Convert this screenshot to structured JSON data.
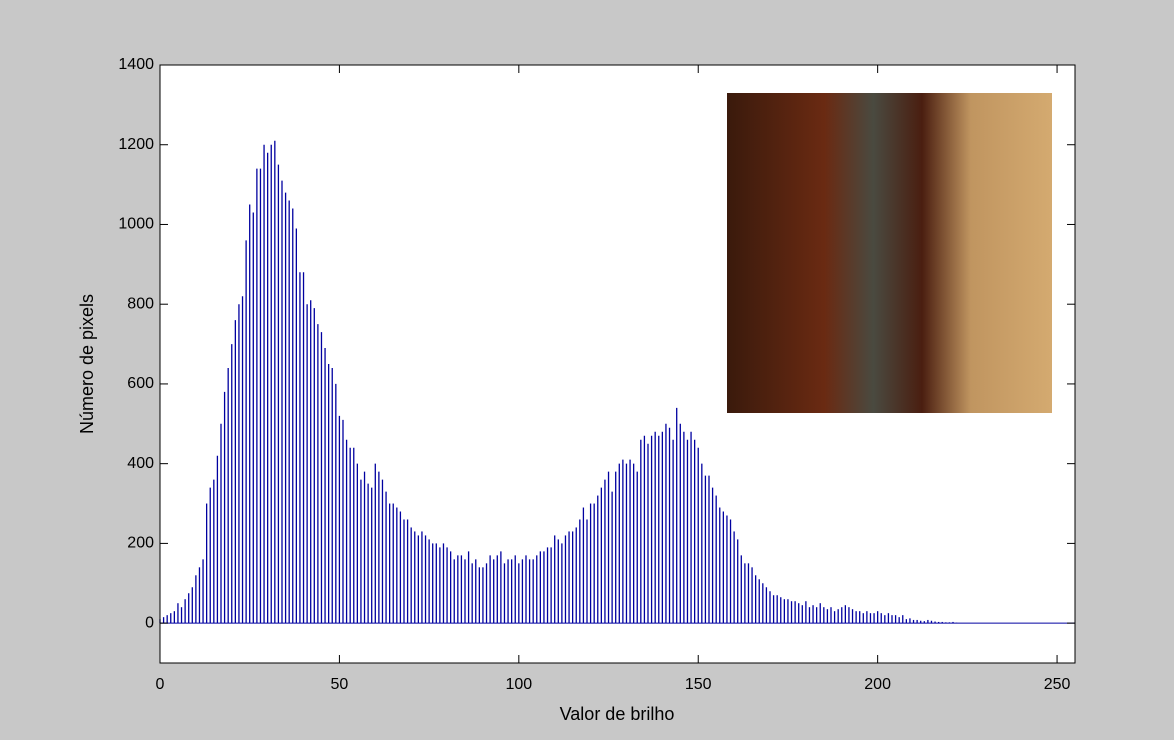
{
  "chart_data": {
    "type": "stem",
    "xlabel": "Valor de brilho",
    "ylabel": "Número de pixels",
    "color": "#0000a0",
    "xlim": [
      0,
      255
    ],
    "ylim": [
      -100,
      1400
    ],
    "xticks": [
      0,
      50,
      100,
      150,
      200,
      250
    ],
    "yticks": [
      0,
      200,
      400,
      600,
      800,
      1000,
      1200,
      1400
    ],
    "x": [
      0,
      1,
      2,
      3,
      4,
      5,
      6,
      7,
      8,
      9,
      10,
      11,
      12,
      13,
      14,
      15,
      16,
      17,
      18,
      19,
      20,
      21,
      22,
      23,
      24,
      25,
      26,
      27,
      28,
      29,
      30,
      31,
      32,
      33,
      34,
      35,
      36,
      37,
      38,
      39,
      40,
      41,
      42,
      43,
      44,
      45,
      46,
      47,
      48,
      49,
      50,
      51,
      52,
      53,
      54,
      55,
      56,
      57,
      58,
      59,
      60,
      61,
      62,
      63,
      64,
      65,
      66,
      67,
      68,
      69,
      70,
      71,
      72,
      73,
      74,
      75,
      76,
      77,
      78,
      79,
      80,
      81,
      82,
      83,
      84,
      85,
      86,
      87,
      88,
      89,
      90,
      91,
      92,
      93,
      94,
      95,
      96,
      97,
      98,
      99,
      100,
      101,
      102,
      103,
      104,
      105,
      106,
      107,
      108,
      109,
      110,
      111,
      112,
      113,
      114,
      115,
      116,
      117,
      118,
      119,
      120,
      121,
      122,
      123,
      124,
      125,
      126,
      127,
      128,
      129,
      130,
      131,
      132,
      133,
      134,
      135,
      136,
      137,
      138,
      139,
      140,
      141,
      142,
      143,
      144,
      145,
      146,
      147,
      148,
      149,
      150,
      151,
      152,
      153,
      154,
      155,
      156,
      157,
      158,
      159,
      160,
      161,
      162,
      163,
      164,
      165,
      166,
      167,
      168,
      169,
      170,
      171,
      172,
      173,
      174,
      175,
      176,
      177,
      178,
      179,
      180,
      181,
      182,
      183,
      184,
      185,
      186,
      187,
      188,
      189,
      190,
      191,
      192,
      193,
      194,
      195,
      196,
      197,
      198,
      199,
      200,
      201,
      202,
      203,
      204,
      205,
      206,
      207,
      208,
      209,
      210,
      211,
      212,
      213,
      214,
      215,
      216,
      217,
      218,
      219,
      220,
      221,
      222,
      223,
      224,
      225,
      226,
      227,
      228,
      229,
      230,
      231,
      232,
      233,
      234,
      235,
      236,
      237,
      238,
      239,
      240,
      241,
      242,
      243,
      244,
      245,
      246,
      247,
      248,
      249,
      250,
      251,
      252,
      253,
      254,
      255
    ],
    "values": [
      10,
      15,
      20,
      25,
      30,
      50,
      40,
      60,
      75,
      90,
      120,
      140,
      160,
      300,
      340,
      360,
      420,
      500,
      580,
      640,
      700,
      760,
      800,
      820,
      960,
      1050,
      1030,
      1140,
      1140,
      1200,
      1180,
      1200,
      1210,
      1150,
      1110,
      1080,
      1060,
      1040,
      990,
      880,
      880,
      800,
      810,
      790,
      750,
      730,
      690,
      650,
      640,
      600,
      520,
      510,
      460,
      440,
      440,
      400,
      360,
      380,
      350,
      340,
      400,
      380,
      360,
      330,
      300,
      300,
      290,
      280,
      260,
      260,
      240,
      230,
      220,
      230,
      220,
      210,
      200,
      200,
      190,
      200,
      190,
      180,
      160,
      170,
      170,
      160,
      180,
      150,
      160,
      140,
      140,
      150,
      170,
      160,
      170,
      180,
      150,
      160,
      160,
      170,
      150,
      160,
      170,
      160,
      160,
      170,
      180,
      180,
      190,
      190,
      220,
      210,
      200,
      220,
      230,
      230,
      240,
      260,
      290,
      260,
      300,
      300,
      320,
      340,
      360,
      380,
      330,
      380,
      400,
      410,
      400,
      410,
      400,
      380,
      460,
      470,
      450,
      470,
      480,
      470,
      480,
      500,
      490,
      460,
      540,
      500,
      480,
      460,
      480,
      460,
      440,
      400,
      370,
      370,
      340,
      320,
      290,
      280,
      270,
      260,
      230,
      210,
      170,
      150,
      150,
      140,
      120,
      110,
      100,
      90,
      80,
      70,
      70,
      65,
      60,
      60,
      55,
      55,
      50,
      45,
      55,
      40,
      45,
      40,
      50,
      40,
      35,
      40,
      30,
      35,
      40,
      45,
      40,
      35,
      30,
      30,
      25,
      30,
      25,
      25,
      30,
      25,
      20,
      25,
      20,
      20,
      15,
      20,
      10,
      12,
      8,
      8,
      6,
      5,
      8,
      6,
      4,
      3,
      3,
      2,
      2,
      3,
      1,
      0,
      0,
      0,
      0,
      0,
      0,
      0,
      0,
      0,
      0,
      0,
      0,
      0,
      0,
      0,
      0,
      0,
      0,
      0,
      0,
      0,
      0,
      0,
      0,
      0,
      0,
      0,
      0,
      0,
      0,
      0,
      0,
      0
    ]
  }
}
